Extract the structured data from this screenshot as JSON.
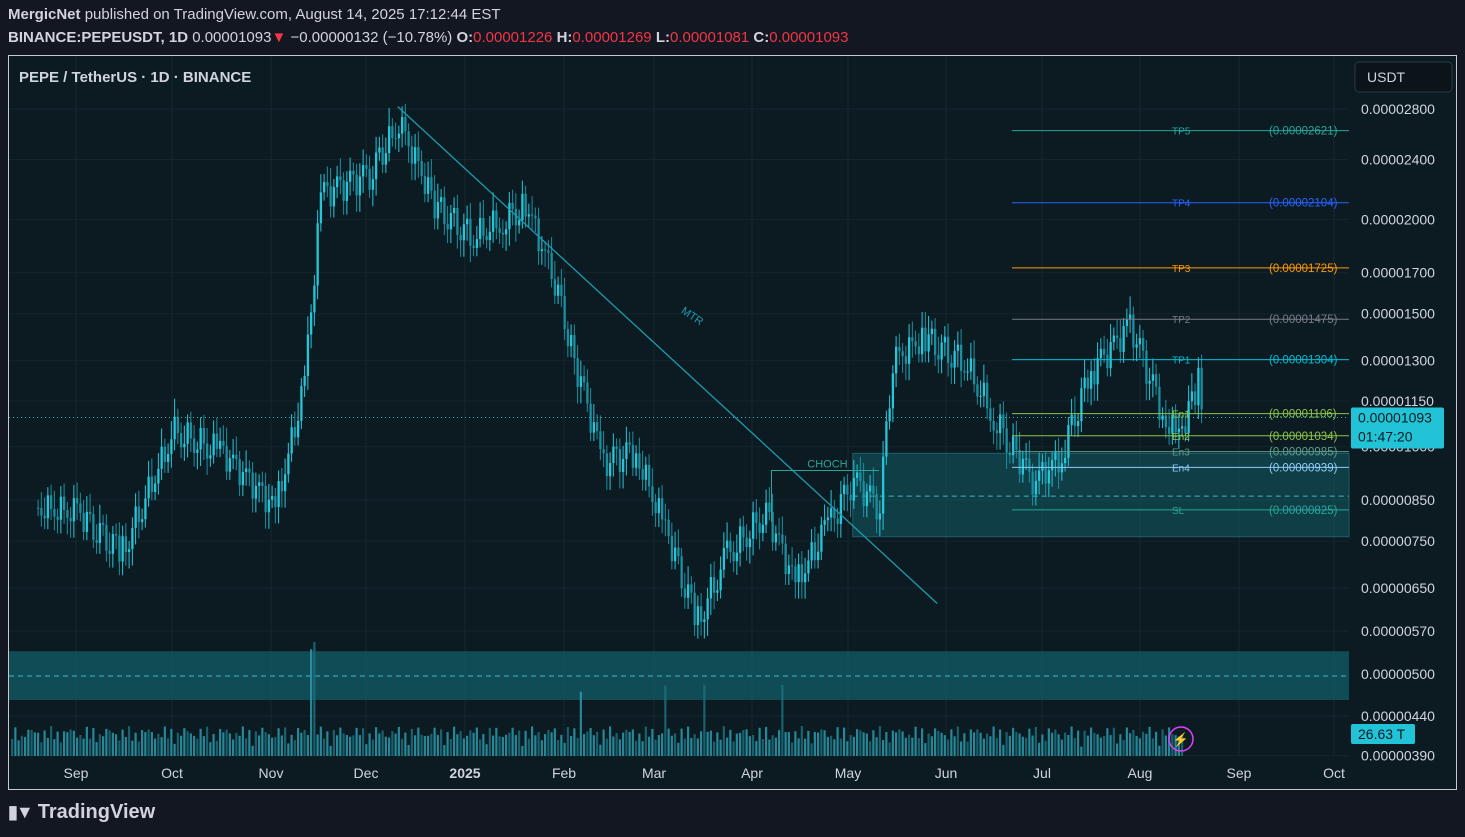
{
  "header": {
    "publisher": "MergicNet",
    "published_text": "published on TradingView.com, August 14, 2025 17:12:44 EST",
    "symbol_line": "BINANCE:PEPEUSDT, 1D",
    "last": "0.00001093",
    "arrow": "▼",
    "change": "−0.00000132 (−10.78%)",
    "o_label": "O:",
    "o": "0.00001226",
    "h_label": "H:",
    "h": "0.00001269",
    "l_label": "L:",
    "l": "0.00001081",
    "c_label": "C:",
    "c": "0.00001093"
  },
  "chart_title": "PEPE / TetherUS · 1D · BINANCE",
  "currency_button": "USDT",
  "price_ticks": [
    "0.00002800",
    "0.00002400",
    "0.00002000",
    "0.00001700",
    "0.00001500",
    "0.00001300",
    "0.00001150",
    "0.00001000",
    "0.00000850",
    "0.00000750",
    "0.00000650",
    "0.00000570",
    "0.00000500",
    "0.00000440",
    "0.00000390"
  ],
  "time_ticks": [
    "Sep",
    "Oct",
    "Nov",
    "Dec",
    "2025",
    "Feb",
    "Mar",
    "Apr",
    "May",
    "Jun",
    "Jul",
    "Aug",
    "Sep",
    "Oct"
  ],
  "price_badge": {
    "value": "0.00001093",
    "countdown": "01:47:20"
  },
  "volume_badge": "26.63 T",
  "levels": [
    {
      "name": "TP5",
      "label": "(0.00002621)",
      "color": "#26a69a"
    },
    {
      "name": "TP4",
      "label": "(0.00002104)",
      "color": "#2962ff"
    },
    {
      "name": "TP3",
      "label": "(0.00001725)",
      "color": "#ff9800"
    },
    {
      "name": "TP2",
      "label": "(0.00001475)",
      "color": "#787b86"
    },
    {
      "name": "TP1",
      "label": "(0.00001304)",
      "color": "#00bcd4"
    },
    {
      "name": "En1",
      "label": "(0.00001106)",
      "color": "#8bc34a"
    },
    {
      "name": "En2",
      "label": "(0.00001034)",
      "color": "#8bc34a"
    },
    {
      "name": "En3",
      "label": "(0.00000985)",
      "color": "#5d9c8a"
    },
    {
      "name": "En4",
      "label": "(0.00000939)",
      "color": "#90caf9"
    },
    {
      "name": "SL",
      "label": "(0.00000825)",
      "color": "#26a69a"
    }
  ],
  "annotations": {
    "trendline": "MTR",
    "choch": "CHOCH"
  },
  "colors": {
    "bg": "#0c1b22",
    "candle": "#26c6da",
    "candle_dark": "#1b8fa0",
    "zone": "#13616b",
    "trend": "#1e9bb0"
  },
  "footer": {
    "brand": "TradingView"
  },
  "chart_data": {
    "type": "candlestick",
    "title": "PEPE / TetherUS · 1D · BINANCE",
    "scale": "log",
    "ylim": [
      3.9e-06,
      2.9e-05
    ],
    "x": [
      "2024-08-20",
      "2024-09-01",
      "2024-09-15",
      "2024-10-01",
      "2024-10-15",
      "2024-11-01",
      "2024-11-10",
      "2024-11-15",
      "2024-12-01",
      "2024-12-09",
      "2024-12-20",
      "2025-01-01",
      "2025-01-10",
      "2025-01-17",
      "2025-01-25",
      "2025-02-01",
      "2025-02-10",
      "2025-02-20",
      "2025-03-01",
      "2025-03-11",
      "2025-03-20",
      "2025-04-01",
      "2025-04-10",
      "2025-04-20",
      "2025-04-28",
      "2025-05-06",
      "2025-05-10",
      "2025-05-20",
      "2025-06-01",
      "2025-06-10",
      "2025-06-22",
      "2025-07-01",
      "2025-07-10",
      "2025-07-22",
      "2025-08-01",
      "2025-08-06",
      "2025-08-12",
      "2025-08-14"
    ],
    "close": [
      8.3e-06,
      8.2e-06,
      7.3e-06,
      1.05e-05,
      9.9e-06,
      8.3e-06,
      1.2e-05,
      2.15e-05,
      2.3e-05,
      2.7e-05,
      2.1e-05,
      1.9e-05,
      2e-05,
      2.1e-05,
      1.7e-05,
      1.3e-05,
      9.5e-06,
      9.8e-06,
      7.8e-06,
      5.9e-06,
      7.2e-06,
      8.2e-06,
      6.6e-06,
      7.8e-06,
      9e-06,
      8.3e-06,
      1.3e-05,
      1.4e-05,
      1.3e-05,
      1.1e-05,
      9e-06,
      9.7e-06,
      1.25e-05,
      1.45e-05,
      1.1e-05,
      1.03e-05,
      1.22e-05,
      1.09e-05
    ],
    "volume_badge": "26.63 T"
  }
}
